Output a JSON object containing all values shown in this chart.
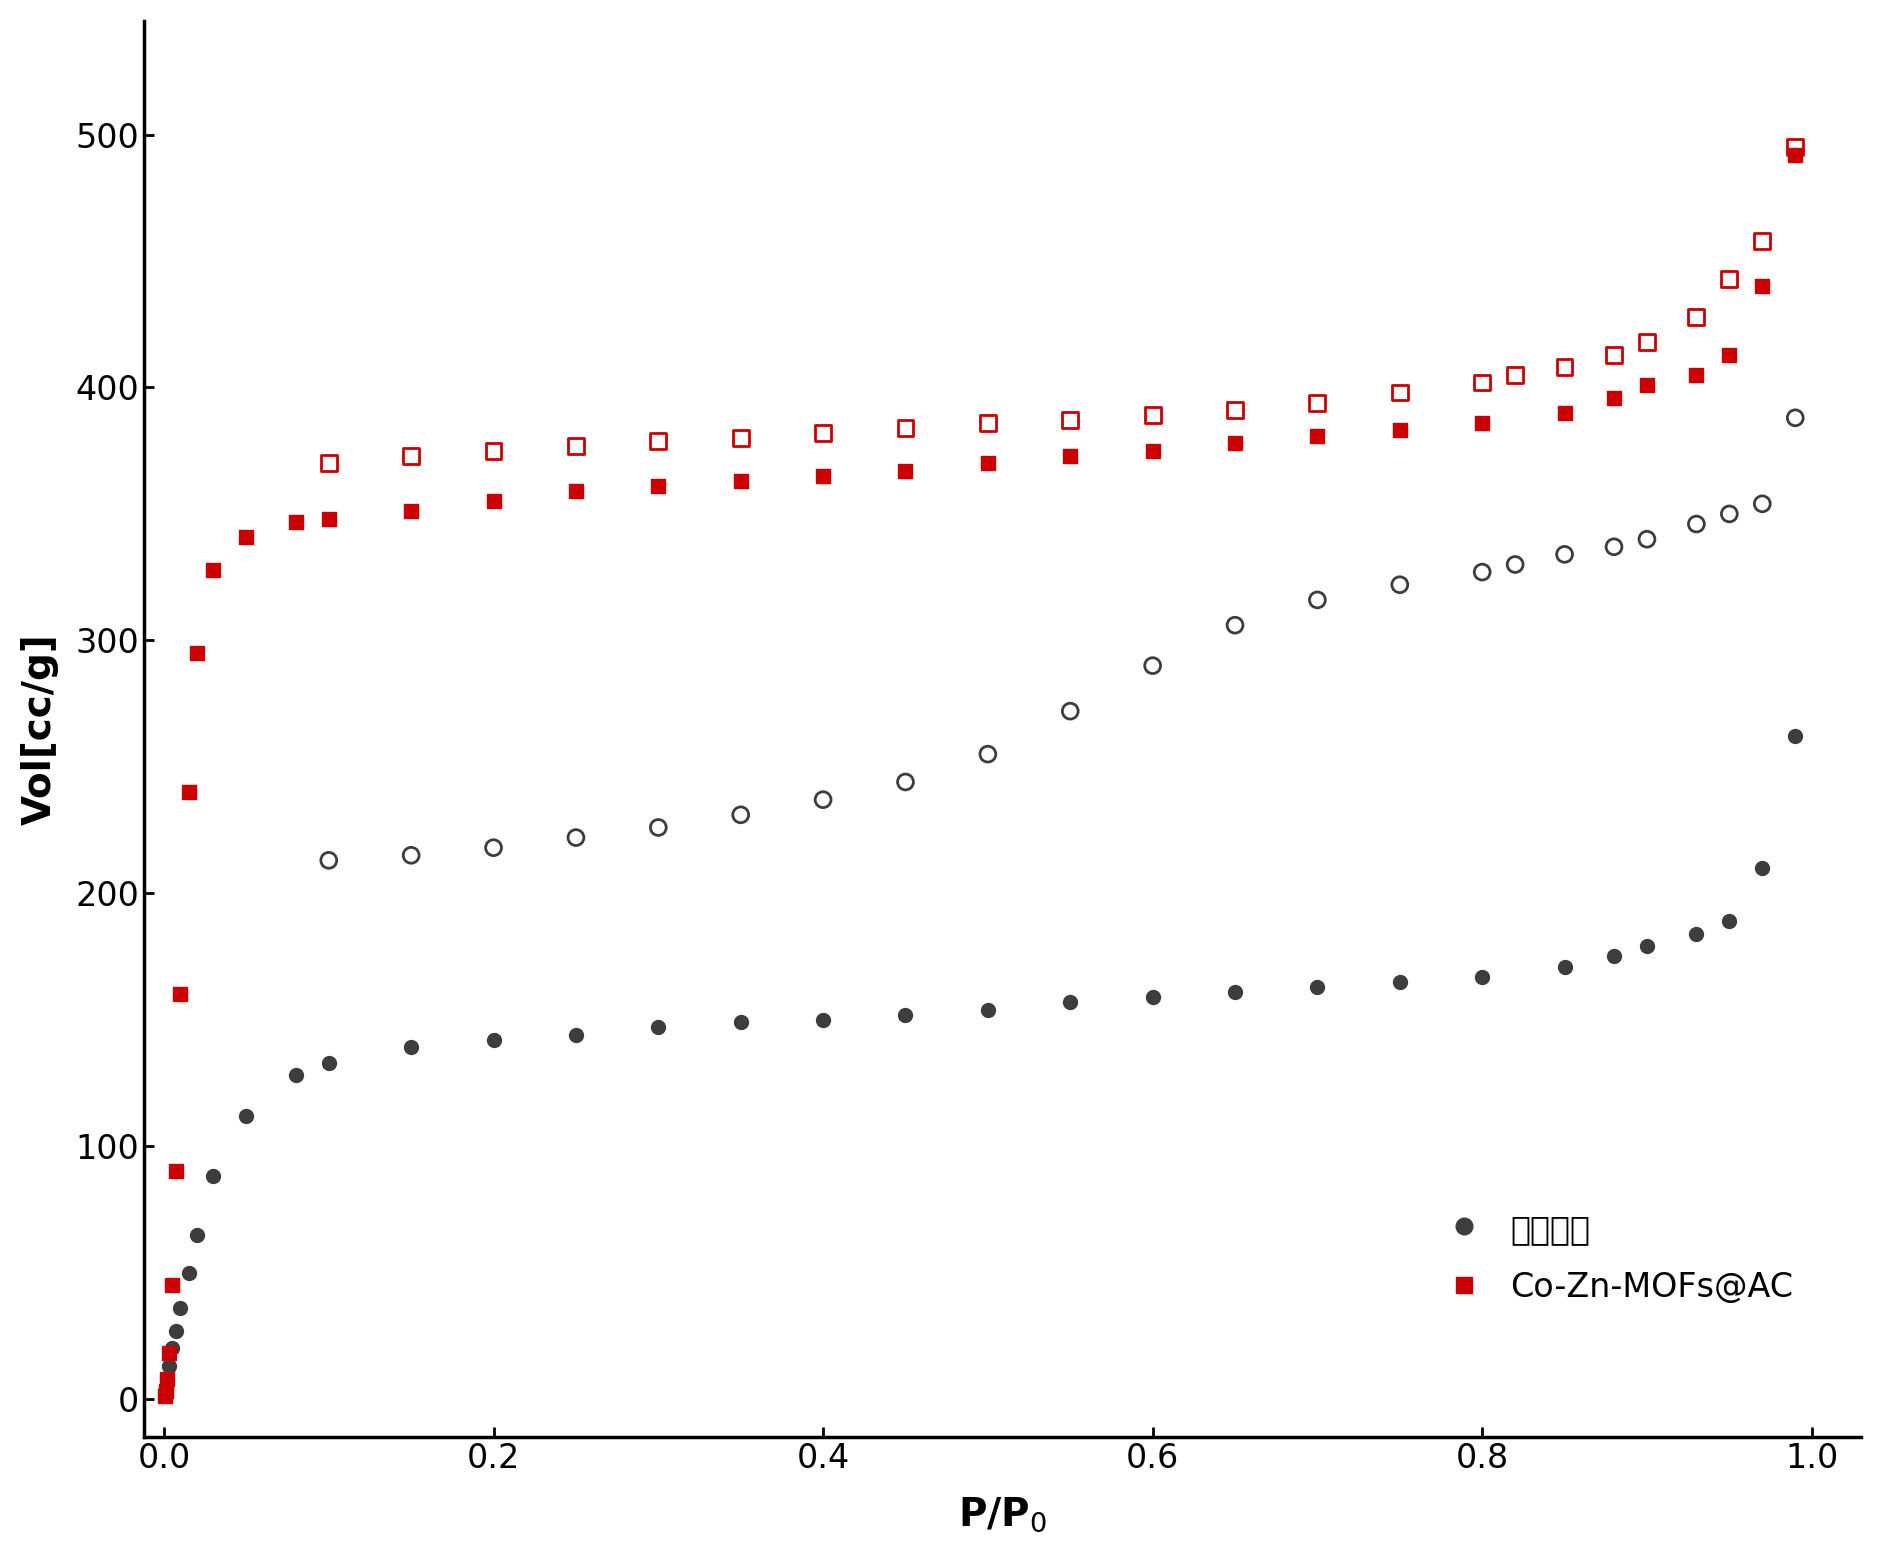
{
  "ac_adsorption_x": [
    0.0005,
    0.001,
    0.002,
    0.003,
    0.005,
    0.007,
    0.01,
    0.015,
    0.02,
    0.03,
    0.05,
    0.08,
    0.1,
    0.15,
    0.2,
    0.25,
    0.3,
    0.35,
    0.4,
    0.45,
    0.5,
    0.55,
    0.6,
    0.65,
    0.7,
    0.75,
    0.8,
    0.85,
    0.88,
    0.9,
    0.93,
    0.95,
    0.97,
    0.99
  ],
  "ac_adsorption_y": [
    2,
    4,
    8,
    13,
    20,
    27,
    36,
    50,
    65,
    88,
    112,
    128,
    133,
    139,
    142,
    144,
    147,
    149,
    150,
    152,
    154,
    157,
    159,
    161,
    163,
    165,
    167,
    171,
    175,
    179,
    184,
    189,
    210,
    262
  ],
  "ac_desorption_x": [
    0.99,
    0.97,
    0.95,
    0.93,
    0.9,
    0.88,
    0.85,
    0.82,
    0.8,
    0.75,
    0.7,
    0.65,
    0.6,
    0.55,
    0.5,
    0.45,
    0.4,
    0.35,
    0.3,
    0.25,
    0.2,
    0.15,
    0.1
  ],
  "ac_desorption_y": [
    388,
    354,
    350,
    346,
    340,
    337,
    334,
    330,
    327,
    322,
    316,
    306,
    290,
    272,
    255,
    244,
    237,
    231,
    226,
    222,
    218,
    215,
    213
  ],
  "mof_adsorption_x": [
    0.0005,
    0.001,
    0.002,
    0.003,
    0.005,
    0.007,
    0.01,
    0.015,
    0.02,
    0.03,
    0.05,
    0.08,
    0.1,
    0.15,
    0.2,
    0.25,
    0.3,
    0.35,
    0.4,
    0.45,
    0.5,
    0.55,
    0.6,
    0.65,
    0.7,
    0.75,
    0.8,
    0.85,
    0.88,
    0.9,
    0.93,
    0.95,
    0.97,
    0.99
  ],
  "mof_adsorption_y": [
    1,
    3,
    8,
    18,
    45,
    90,
    160,
    240,
    295,
    328,
    341,
    347,
    348,
    351,
    355,
    359,
    361,
    363,
    365,
    367,
    370,
    373,
    375,
    378,
    381,
    383,
    386,
    390,
    396,
    401,
    405,
    413,
    440,
    492
  ],
  "mof_desorption_x": [
    0.99,
    0.97,
    0.95,
    0.93,
    0.9,
    0.88,
    0.85,
    0.82,
    0.8,
    0.75,
    0.7,
    0.65,
    0.6,
    0.55,
    0.5,
    0.45,
    0.4,
    0.35,
    0.3,
    0.25,
    0.2,
    0.15,
    0.1
  ],
  "mof_desorption_y": [
    495,
    458,
    443,
    428,
    418,
    413,
    408,
    405,
    402,
    398,
    394,
    391,
    389,
    387,
    386,
    384,
    382,
    380,
    379,
    377,
    375,
    373,
    370
  ],
  "ac_color": "#3d3d3d",
  "mof_color": "#cc0000",
  "marker_size_adsorption": 100,
  "marker_size_desorption": 130,
  "xlabel": "P/P$_0$",
  "ylabel": "Vol[cc/g]",
  "ylim": [
    -15,
    545
  ],
  "xlim": [
    -0.012,
    1.03
  ],
  "legend_label_ac": "活性炭粉",
  "legend_label_mof": "Co-Zn-MOFs@AC",
  "font_size_ticks": 24,
  "font_size_labels": 28,
  "font_size_legend": 24,
  "figwidth": 18.82,
  "figheight": 15.55,
  "dpi": 100
}
